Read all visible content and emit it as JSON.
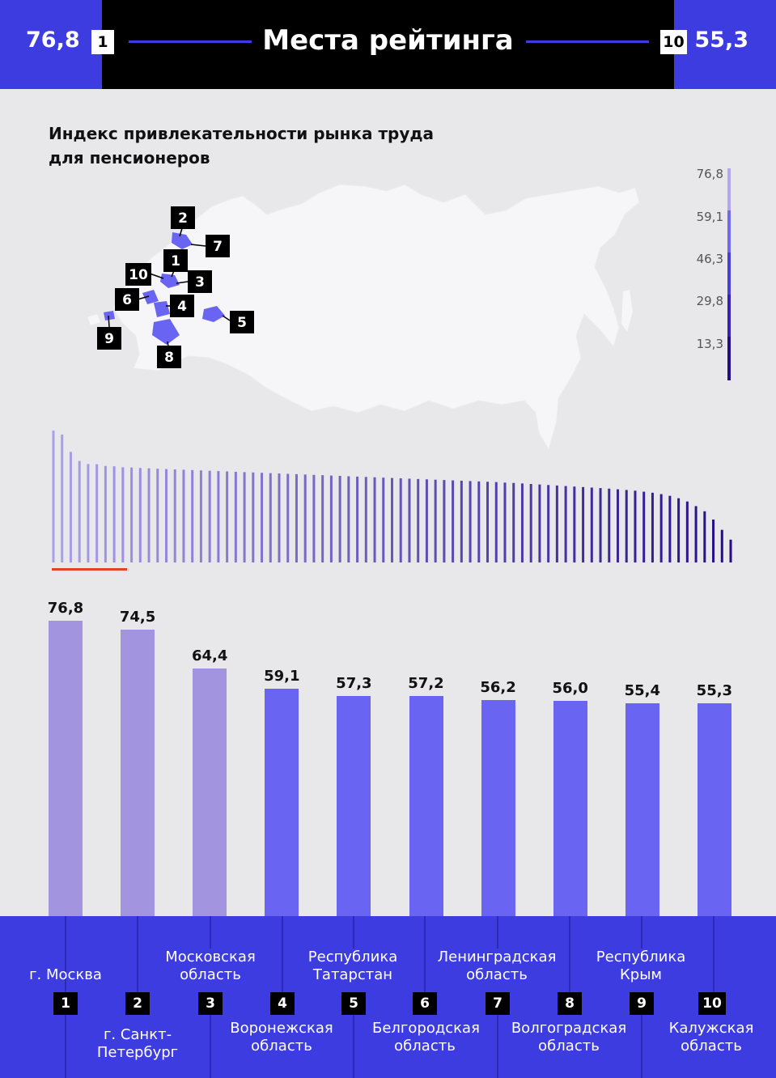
{
  "header": {
    "left_value": "76,8",
    "left_rank": "1",
    "title": "Места рейтинга",
    "right_rank": "10",
    "right_value": "55,3"
  },
  "subtitle_line1": "Индекс привлекательности рынка труда",
  "subtitle_line2": "для пенсионеров",
  "legend": [
    "76,8",
    "59,1",
    "46,3",
    "29,8",
    "13,3"
  ],
  "map_markers": [
    "1",
    "2",
    "3",
    "4",
    "5",
    "6",
    "7",
    "8",
    "9",
    "10"
  ],
  "colors": {
    "header_bg": "#000000",
    "accent_blue": "#3d3ce0",
    "top3_bar": "#a294df",
    "rest_bar": "#6a64f2",
    "legend_top": "#b3a7ee",
    "legend_bottom": "#240c8a",
    "highlight": "#e0442a"
  },
  "chart_data": [
    {
      "type": "bar",
      "categories": [
        "г. Москва",
        "г. Санкт-Петербург",
        "Московская область",
        "Воронежская область",
        "Республика Татарстан",
        "Белгородская область",
        "Ленинградская область",
        "Волгоградская область",
        "Республика Крым",
        "Калужская область"
      ],
      "ranks": [
        "1",
        "2",
        "3",
        "4",
        "5",
        "6",
        "7",
        "8",
        "9",
        "10"
      ],
      "values": [
        76.8,
        74.5,
        64.4,
        59.1,
        57.3,
        57.2,
        56.2,
        56.0,
        55.4,
        55.3
      ],
      "value_labels": [
        "76,8",
        "74,5",
        "64,4",
        "59,1",
        "57,3",
        "57,2",
        "56,2",
        "56,0",
        "55,4",
        "55,3"
      ],
      "ylim": [
        0,
        80
      ]
    },
    {
      "type": "bar",
      "values": [
        76.8,
        74.5,
        64.4,
        59.1,
        57.3,
        57.2,
        56.2,
        56.0,
        55.4,
        55.3,
        55.0,
        54.8,
        54.6,
        54.4,
        54.2,
        54.0,
        53.8,
        53.6,
        53.4,
        53.2,
        53.0,
        52.8,
        52.6,
        52.4,
        52.2,
        52.0,
        51.8,
        51.6,
        51.4,
        51.2,
        51.0,
        50.8,
        50.6,
        50.4,
        50.2,
        50.0,
        49.8,
        49.6,
        49.4,
        49.2,
        49.0,
        48.8,
        48.6,
        48.4,
        48.2,
        48.0,
        47.8,
        47.6,
        47.4,
        47.2,
        47.0,
        46.8,
        46.5,
        46.3,
        46.0,
        45.7,
        45.4,
        45.1,
        44.8,
        44.5,
        44.2,
        43.9,
        43.6,
        43.3,
        43.0,
        42.6,
        42.2,
        41.8,
        41.2,
        40.6,
        39.8,
        38.8,
        37.4,
        35.5,
        32.8,
        29.8,
        25.0,
        19.0,
        13.3
      ],
      "ylim": [
        0,
        80
      ]
    }
  ]
}
